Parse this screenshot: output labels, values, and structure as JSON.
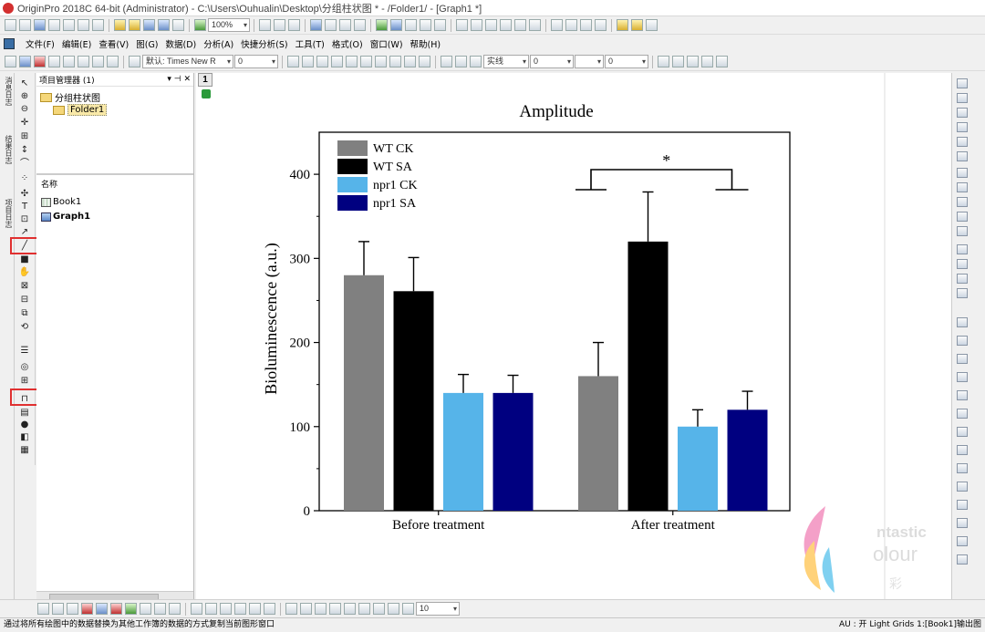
{
  "window": {
    "title": "OriginPro 2018C 64-bit (Administrator) - C:\\Users\\Ouhualin\\Desktop\\分组柱状图 * - /Folder1/ - [Graph1 *]"
  },
  "menu": [
    "文件(F)",
    "编辑(E)",
    "查看(V)",
    "图(G)",
    "数据(D)",
    "分析(A)",
    "快捷分析(S)",
    "工具(T)",
    "格式(O)",
    "窗口(W)",
    "帮助(H)"
  ],
  "toolbar": {
    "zoom": "100%",
    "font": "默认: Times New R",
    "font_size": "0",
    "line_style_label": "实线",
    "line_width": "0",
    "zoom_bottom": "10"
  },
  "left_tabs": [
    "消息日志",
    "结果日志",
    "项目日志"
  ],
  "project_manager": {
    "title": "项目管理器 (1)",
    "root": "分组柱状图",
    "folder": "Folder1",
    "list_header": "名称",
    "items": [
      {
        "name": "Book1",
        "bold": false
      },
      {
        "name": "Graph1",
        "bold": true
      }
    ]
  },
  "graph": {
    "layer_tab": "1"
  },
  "chart_data": {
    "type": "bar",
    "title": "Amplitude",
    "xlabel": "",
    "ylabel": "Bioluminescence (a.u.)",
    "categories": [
      "Before treatment",
      "After treatment"
    ],
    "ylim": [
      0,
      450
    ],
    "yticks": [
      0,
      100,
      200,
      300,
      400
    ],
    "series": [
      {
        "name": "WT CK",
        "color": "#808080",
        "values": [
          280,
          160
        ],
        "errors": [
          40,
          40
        ]
      },
      {
        "name": "WT SA",
        "color": "#000000",
        "values": [
          261,
          320
        ],
        "errors": [
          40,
          59
        ]
      },
      {
        "name": "npr1 CK",
        "color": "#56b4e9",
        "values": [
          140,
          100
        ],
        "errors": [
          22,
          20
        ]
      },
      {
        "name": "npr1 SA",
        "color": "#000080",
        "values": [
          140,
          120
        ],
        "errors": [
          21,
          22
        ]
      }
    ],
    "annotations": [
      {
        "text": "*",
        "group": "After treatment"
      }
    ],
    "legend": "top-left",
    "grid": false
  },
  "watermark": {
    "line1": "ntastic",
    "line2": "olour",
    "line3": "彩"
  },
  "status": {
    "left": "通过将所有绘图中的数据替换为其他工作簿的数据的方式复制当前图形窗口",
    "right": "AU : 开  Light Grids  1:[Book1]输出图"
  }
}
